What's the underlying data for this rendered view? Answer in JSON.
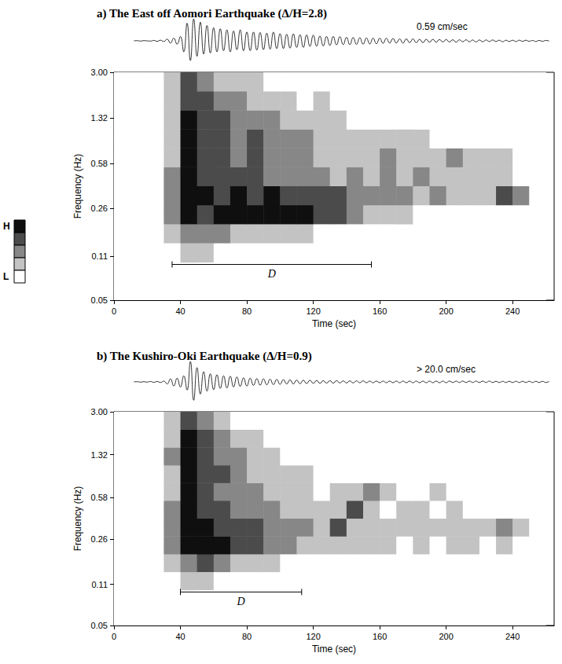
{
  "chart_data": [
    {
      "type": "spectrogram",
      "title": "a) The East off Aomori Earthquake (Δ/H=2.8)",
      "xlabel": "Time (sec)",
      "ylabel": "Frequency (Hz)",
      "xlim": [
        0,
        265
      ],
      "xticks": [
        0,
        40,
        80,
        120,
        160,
        200,
        240
      ],
      "ylim": [
        0.05,
        3
      ],
      "yticks": [
        0.05,
        0.11,
        0.26,
        0.58,
        1.32,
        {
          "value": 3,
          "label": "3.00"
        }
      ],
      "log": "y",
      "grid": false,
      "time_edges": [
        0,
        10,
        20,
        30,
        40,
        50,
        60,
        70,
        80,
        90,
        100,
        110,
        120,
        130,
        140,
        150,
        160,
        170,
        180,
        190,
        200,
        210,
        220,
        230,
        240,
        250,
        260
      ],
      "freq_edges": [
        0.05,
        0.07,
        0.099,
        0.14,
        0.197,
        0.277,
        0.39,
        0.548,
        0.77,
        1.08,
        1.52,
        2.14,
        3.0
      ],
      "cells": [
        [
          0,
          0,
          0,
          0,
          0,
          0,
          0,
          0,
          0,
          0,
          0,
          0,
          0,
          0,
          0,
          0,
          0,
          0,
          0,
          0,
          0,
          0,
          0,
          0,
          0,
          0
        ],
        [
          0,
          0,
          0,
          0,
          0,
          0,
          0,
          0,
          0,
          0,
          0,
          0,
          0,
          0,
          0,
          0,
          0,
          0,
          0,
          0,
          0,
          0,
          0,
          0,
          0,
          0
        ],
        [
          0,
          0,
          0,
          0,
          1,
          1,
          0,
          0,
          0,
          0,
          0,
          0,
          0,
          0,
          0,
          0,
          0,
          0,
          0,
          0,
          0,
          0,
          0,
          0,
          0,
          0
        ],
        [
          0,
          0,
          0,
          1,
          2,
          2,
          2,
          1,
          1,
          1,
          1,
          1,
          0,
          0,
          0,
          0,
          0,
          0,
          0,
          0,
          0,
          0,
          0,
          0,
          0,
          0
        ],
        [
          0,
          0,
          0,
          2,
          4,
          3,
          4,
          4,
          4,
          4,
          4,
          4,
          3,
          3,
          2,
          1,
          1,
          1,
          0,
          0,
          0,
          0,
          0,
          0,
          0,
          0
        ],
        [
          0,
          0,
          0,
          2,
          4,
          4,
          3,
          4,
          3,
          4,
          3,
          3,
          3,
          3,
          2,
          2,
          2,
          2,
          1,
          2,
          1,
          1,
          1,
          3,
          2,
          0
        ],
        [
          0,
          0,
          0,
          2,
          4,
          3,
          3,
          3,
          3,
          2,
          2,
          2,
          2,
          1,
          2,
          1,
          2,
          1,
          2,
          1,
          1,
          1,
          1,
          1,
          0,
          0
        ],
        [
          0,
          0,
          0,
          1,
          4,
          3,
          3,
          2,
          3,
          2,
          2,
          2,
          1,
          1,
          1,
          1,
          2,
          1,
          1,
          1,
          2,
          1,
          1,
          1,
          0,
          0
        ],
        [
          0,
          0,
          0,
          1,
          4,
          3,
          3,
          2,
          3,
          2,
          2,
          2,
          1,
          1,
          1,
          1,
          1,
          1,
          1,
          0,
          0,
          0,
          0,
          0,
          0,
          0
        ],
        [
          0,
          0,
          0,
          1,
          4,
          3,
          3,
          2,
          2,
          2,
          1,
          1,
          1,
          1,
          0,
          0,
          0,
          0,
          0,
          0,
          0,
          0,
          0,
          0,
          0,
          0
        ],
        [
          0,
          0,
          0,
          1,
          3,
          3,
          2,
          2,
          1,
          1,
          1,
          0,
          1,
          0,
          0,
          0,
          0,
          0,
          0,
          0,
          0,
          0,
          0,
          0,
          0,
          0
        ],
        [
          0,
          0,
          0,
          1,
          3,
          2,
          1,
          1,
          1,
          0,
          0,
          0,
          0,
          0,
          0,
          0,
          0,
          0,
          0,
          0,
          0,
          0,
          0,
          0,
          0,
          0
        ]
      ],
      "d_bar": {
        "label": "D",
        "start": 35,
        "end": 155,
        "freq": 0.095
      },
      "trace": {
        "type": "line",
        "label": "0.59 cm/sec",
        "color": "#000000",
        "tick_labels": false,
        "ylim": [
          -1,
          1
        ],
        "x": [
          12,
          14,
          16,
          18,
          20,
          22,
          24,
          26,
          28,
          30,
          32,
          34,
          36,
          38,
          40,
          42,
          44,
          46,
          48,
          50,
          52,
          54,
          56,
          58,
          60,
          62,
          64,
          66,
          68,
          70,
          72,
          74,
          76,
          78,
          80,
          82,
          84,
          86,
          88,
          90,
          92,
          94,
          96,
          98,
          100,
          102,
          104,
          106,
          108,
          110,
          112,
          114,
          116,
          118,
          120,
          122,
          124,
          126,
          128,
          130,
          132,
          134,
          136,
          138,
          140,
          142,
          144,
          146,
          148,
          150,
          152,
          154,
          156,
          158,
          160,
          162,
          164,
          166,
          168,
          170,
          172,
          174,
          176,
          178,
          180,
          182,
          184,
          186,
          188,
          190,
          192,
          194,
          196,
          198,
          200,
          202,
          204,
          206,
          208,
          210,
          212,
          214,
          216,
          218,
          220,
          222,
          224,
          226,
          228,
          230,
          232,
          234,
          236,
          238,
          240,
          242,
          244,
          246,
          248,
          250,
          252,
          254,
          256,
          258,
          260,
          262
        ],
        "values": [
          0,
          0.01,
          -0.01,
          0.01,
          0,
          -0.01,
          0.02,
          -0.02,
          0.03,
          -0.03,
          0.08,
          -0.1,
          0.12,
          -0.15,
          0.2,
          -0.5,
          0.8,
          -0.9,
          1.0,
          -0.7,
          0.85,
          -0.6,
          0.7,
          -0.55,
          0.6,
          -0.5,
          0.55,
          -0.45,
          0.5,
          -0.5,
          0.45,
          -0.4,
          0.5,
          -0.45,
          0.4,
          -0.45,
          0.4,
          -0.42,
          0.38,
          -0.4,
          0.35,
          -0.38,
          0.4,
          -0.35,
          0.33,
          -0.35,
          0.3,
          -0.33,
          0.32,
          -0.3,
          0.28,
          -0.3,
          0.27,
          -0.25,
          0.26,
          -0.24,
          0.22,
          -0.23,
          0.2,
          -0.21,
          0.2,
          -0.18,
          0.19,
          -0.17,
          0.16,
          -0.17,
          0.15,
          -0.16,
          0.14,
          -0.15,
          0.13,
          -0.14,
          0.12,
          -0.13,
          0.12,
          -0.11,
          0.12,
          -0.1,
          0.11,
          -0.1,
          0.09,
          -0.1,
          0.09,
          -0.08,
          0.09,
          -0.08,
          0.07,
          -0.08,
          0.07,
          -0.06,
          0.07,
          -0.06,
          0.06,
          -0.05,
          0.06,
          -0.05,
          0.05,
          -0.06,
          0.05,
          -0.04,
          0.05,
          -0.04,
          0.04,
          -0.05,
          0.04,
          -0.04,
          0.04,
          -0.03,
          0.04,
          -0.03,
          0.03,
          -0.04,
          0.03,
          -0.03,
          0.03,
          -0.03,
          0.03,
          -0.02,
          0.03,
          -0.02,
          0.02,
          -0.03,
          0.02,
          -0.02,
          0.02,
          -0.01
        ]
      }
    },
    {
      "type": "spectrogram",
      "title": "b) The Kushiro-Oki Earthquake (Δ/H=0.9)",
      "xlabel": "Time (sec)",
      "ylabel": "Frequency (Hz)",
      "xlim": [
        0,
        265
      ],
      "xticks": [
        0,
        40,
        80,
        120,
        160,
        200,
        240
      ],
      "ylim": [
        0.05,
        3
      ],
      "yticks": [
        0.05,
        0.11,
        0.26,
        0.58,
        1.32,
        {
          "value": 3,
          "label": "3.00"
        }
      ],
      "log": "y",
      "grid": false,
      "time_edges": [
        0,
        10,
        20,
        30,
        40,
        50,
        60,
        70,
        80,
        90,
        100,
        110,
        120,
        130,
        140,
        150,
        160,
        170,
        180,
        190,
        200,
        210,
        220,
        230,
        240,
        250,
        260
      ],
      "freq_edges": [
        0.05,
        0.07,
        0.099,
        0.14,
        0.197,
        0.277,
        0.39,
        0.548,
        0.77,
        1.08,
        1.52,
        2.14,
        3.0
      ],
      "cells": [
        [
          0,
          0,
          0,
          0,
          0,
          0,
          0,
          0,
          0,
          0,
          0,
          0,
          0,
          0,
          0,
          0,
          0,
          0,
          0,
          0,
          0,
          0,
          0,
          0,
          0,
          0
        ],
        [
          0,
          0,
          0,
          0,
          0,
          0,
          0,
          0,
          0,
          0,
          0,
          0,
          0,
          0,
          0,
          0,
          0,
          0,
          0,
          0,
          0,
          0,
          0,
          0,
          0,
          0
        ],
        [
          0,
          0,
          0,
          0,
          1,
          1,
          0,
          0,
          0,
          0,
          0,
          0,
          0,
          0,
          0,
          0,
          0,
          0,
          0,
          0,
          0,
          0,
          0,
          0,
          0,
          0
        ],
        [
          0,
          0,
          0,
          1,
          2,
          3,
          2,
          1,
          1,
          1,
          0,
          0,
          0,
          0,
          0,
          0,
          0,
          0,
          0,
          0,
          0,
          0,
          0,
          0,
          0,
          0
        ],
        [
          0,
          0,
          0,
          2,
          4,
          4,
          4,
          3,
          3,
          2,
          2,
          1,
          1,
          1,
          1,
          1,
          1,
          0,
          1,
          0,
          1,
          1,
          0,
          1,
          0,
          0
        ],
        [
          0,
          0,
          0,
          2,
          4,
          4,
          3,
          3,
          3,
          2,
          2,
          2,
          1,
          3,
          1,
          1,
          1,
          1,
          1,
          1,
          1,
          1,
          1,
          2,
          1,
          0
        ],
        [
          0,
          0,
          0,
          2,
          4,
          3,
          3,
          2,
          2,
          2,
          1,
          1,
          1,
          1,
          3,
          1,
          0,
          1,
          1,
          0,
          1,
          0,
          0,
          0,
          0,
          0
        ],
        [
          0,
          0,
          0,
          1,
          4,
          3,
          2,
          2,
          2,
          1,
          1,
          1,
          0,
          1,
          1,
          2,
          1,
          0,
          0,
          1,
          0,
          0,
          0,
          0,
          0,
          0
        ],
        [
          0,
          0,
          0,
          1,
          4,
          3,
          3,
          2,
          1,
          1,
          1,
          1,
          0,
          0,
          0,
          0,
          0,
          0,
          0,
          0,
          0,
          0,
          0,
          0,
          0,
          0
        ],
        [
          0,
          0,
          0,
          2,
          4,
          3,
          2,
          2,
          1,
          1,
          0,
          0,
          0,
          0,
          0,
          0,
          0,
          0,
          0,
          0,
          0,
          0,
          0,
          0,
          0,
          0
        ],
        [
          0,
          0,
          0,
          1,
          4,
          3,
          2,
          1,
          1,
          0,
          0,
          0,
          0,
          0,
          0,
          0,
          0,
          0,
          0,
          0,
          0,
          0,
          0,
          0,
          0,
          0
        ],
        [
          0,
          0,
          0,
          1,
          3,
          2,
          1,
          0,
          0,
          0,
          0,
          0,
          0,
          0,
          0,
          0,
          0,
          0,
          0,
          0,
          0,
          0,
          0,
          0,
          0,
          0
        ]
      ],
      "d_bar": {
        "label": "D",
        "start": 40,
        "end": 113,
        "freq": 0.095
      },
      "trace": {
        "type": "line",
        "label": "> 20.0 cm/sec",
        "color": "#000000",
        "tick_labels": false,
        "ylim": [
          -1,
          1
        ],
        "x": [
          12,
          14,
          16,
          18,
          20,
          22,
          24,
          26,
          28,
          30,
          32,
          34,
          36,
          38,
          40,
          42,
          44,
          46,
          48,
          50,
          52,
          54,
          56,
          58,
          60,
          62,
          64,
          66,
          68,
          70,
          72,
          74,
          76,
          78,
          80,
          82,
          84,
          86,
          88,
          90,
          92,
          94,
          96,
          98,
          100,
          102,
          104,
          106,
          108,
          110,
          112,
          114,
          116,
          118,
          120,
          122,
          124,
          126,
          128,
          130,
          132,
          134,
          136,
          138,
          140,
          142,
          144,
          146,
          148,
          150,
          152,
          154,
          156,
          158,
          160,
          162,
          164,
          166,
          168,
          170,
          172,
          174,
          176,
          178,
          180,
          182,
          184,
          186,
          188,
          190,
          192,
          194,
          196,
          198,
          200,
          202,
          204,
          206,
          208,
          210,
          212,
          214,
          216,
          218,
          220,
          222,
          224,
          226,
          228,
          230,
          232,
          234,
          236,
          238,
          240,
          242,
          244,
          246,
          248,
          250,
          252,
          254,
          256,
          258,
          260,
          262
        ],
        "values": [
          0,
          0.01,
          -0.01,
          0.01,
          -0.01,
          0.02,
          -0.02,
          0.02,
          -0.03,
          0.04,
          -0.1,
          0.15,
          -0.2,
          0.18,
          -0.25,
          0.3,
          -0.4,
          1.0,
          -0.9,
          0.7,
          -0.6,
          0.5,
          -0.45,
          0.4,
          -0.38,
          0.35,
          -0.32,
          0.3,
          -0.3,
          0.28,
          -0.25,
          0.24,
          -0.22,
          0.2,
          -0.2,
          0.18,
          -0.17,
          0.16,
          -0.16,
          0.15,
          -0.14,
          0.13,
          -0.13,
          0.12,
          -0.12,
          0.11,
          -0.1,
          0.1,
          -0.1,
          0.09,
          -0.09,
          0.08,
          -0.08,
          0.08,
          -0.07,
          0.07,
          -0.07,
          0.06,
          -0.06,
          0.06,
          -0.06,
          0.06,
          -0.05,
          0.05,
          -0.05,
          0.05,
          -0.05,
          0.05,
          -0.04,
          0.05,
          -0.04,
          0.04,
          -0.04,
          0.04,
          -0.04,
          0.04,
          -0.04,
          0.04,
          -0.04,
          0.04,
          -0.04,
          0.04,
          -0.04,
          0.04,
          -0.04,
          0.04,
          -0.04,
          0.04,
          -0.04,
          0.04,
          -0.04,
          0.04,
          -0.04,
          0.04,
          -0.04,
          0.04,
          -0.03,
          0.04,
          -0.03,
          0.04,
          -0.03,
          0.04,
          -0.03,
          0.04,
          -0.03,
          0.04,
          -0.03,
          0.04,
          -0.03,
          0.03,
          -0.03,
          0.03,
          -0.03,
          0.03,
          -0.03,
          0.03,
          -0.03,
          0.03,
          -0.03,
          0.03,
          -0.03,
          0.03,
          -0.03,
          0.03,
          -0.03,
          0.03
        ]
      }
    }
  ],
  "colorbar": {
    "range": [
      0,
      4
    ],
    "ticks": [
      {
        "value": 0,
        "label": "L"
      },
      {
        "value": 4,
        "label": "H"
      }
    ]
  }
}
